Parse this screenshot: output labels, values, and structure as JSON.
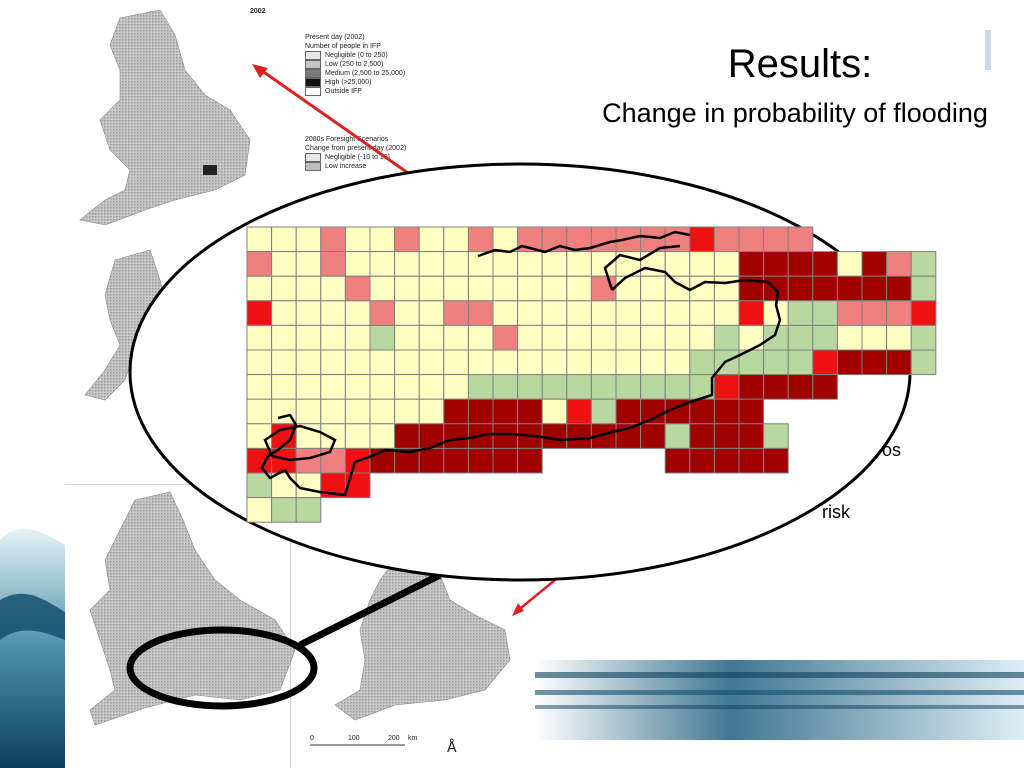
{
  "slide": {
    "title": "Results:",
    "subtitle": "Change in probability of flooding"
  },
  "figure": {
    "year_label": "2002",
    "legend_present": {
      "heading": "Present day (2002)",
      "subheading": "Number of people in IFP",
      "items": [
        {
          "label": "Negligible (0 to 250)",
          "color": "#e6e6e6"
        },
        {
          "label": "Low (250 to 2,500)",
          "color": "#c2c2c2"
        },
        {
          "label": "Medium (2,500 to 25,000)",
          "color": "#7a7a7a"
        },
        {
          "label": "High (>25,000)",
          "color": "#111111"
        },
        {
          "label": "Outside IFP",
          "color": "#ffffff"
        }
      ]
    },
    "legend_future": {
      "heading": "2080s Foresight Scenarios",
      "subheading": "Change from present day (2002)",
      "items": [
        {
          "label": "Negligible (-10 to 10)",
          "color": "#e6e6e6"
        },
        {
          "label": "Low increase",
          "color": "#bdbdbd"
        }
      ]
    },
    "scale_labels": [
      "0",
      "100",
      "200",
      "km"
    ]
  },
  "zoom_map": {
    "colors": {
      "yellow": "#ffffc2",
      "pink": "#f08080",
      "red": "#ee1111",
      "darkred": "#a00000",
      "green": "#b8d8a0",
      "grid": "#808080"
    }
  },
  "partial_text": {
    "right_1": "os",
    "right_2": "risk"
  }
}
